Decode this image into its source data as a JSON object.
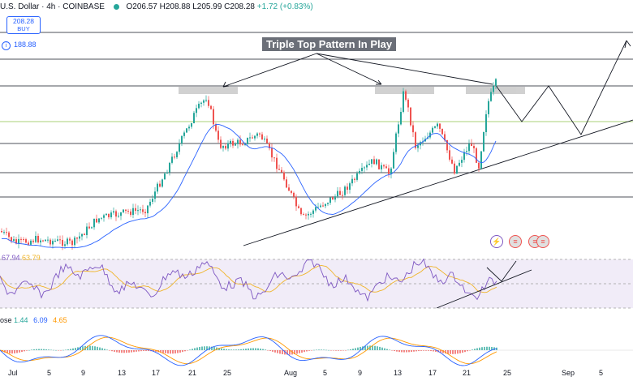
{
  "header": {
    "symbol": "U.S. Dollar · 4h · COINBASE",
    "open": "O206.57",
    "high": "H208.88",
    "low": "L205.99",
    "close": "C208.28",
    "change": "+1.72 (+0.83%)"
  },
  "buy_box": {
    "price": "208.28",
    "label": "BUY"
  },
  "sub_price": "188.88",
  "annotation": "Triple Top Pattern In Play",
  "rsi": {
    "label_a": "67.94",
    "label_b": "63.79"
  },
  "macd": {
    "label": "ose",
    "hist": "1.44",
    "macd": "6.09",
    "signal": "4.65"
  },
  "colors": {
    "up": "#26a69a",
    "down": "#ef5350",
    "ma": "#2962ff",
    "rsi": "#7e57c2",
    "rsi_ma": "#f0b429",
    "macd": "#2962ff",
    "signal": "#ff9800"
  },
  "icons": [
    "lightning-icon",
    "flag-icon",
    "flag-icon",
    "flag-icon"
  ],
  "chart_data": {
    "type": "candlestick",
    "x_ticks": [
      "Jul",
      "5",
      "9",
      "13",
      "17",
      "21",
      "25",
      "Aug",
      "5",
      "9",
      "13",
      "17",
      "21",
      "25",
      "Sep",
      "5"
    ],
    "key_levels_approx": [
      210,
      200,
      190,
      182,
      170
    ],
    "rsi_levels": [
      70,
      30
    ],
    "close_path_approx": [
      {
        "t": "Jul",
        "v": 150
      },
      {
        "t": "5",
        "v": 143
      },
      {
        "t": "9",
        "v": 147
      },
      {
        "t": "13",
        "v": 160
      },
      {
        "t": "17",
        "v": 168
      },
      {
        "t": "21",
        "v": 190
      },
      {
        "t": "23",
        "v": 204
      },
      {
        "t": "25",
        "v": 184
      },
      {
        "t": "29",
        "v": 182
      },
      {
        "t": "Aug",
        "v": 172
      },
      {
        "t": "5",
        "v": 158
      },
      {
        "t": "9",
        "v": 168
      },
      {
        "t": "13",
        "v": 188
      },
      {
        "t": "14",
        "v": 202
      },
      {
        "t": "17",
        "v": 186
      },
      {
        "t": "21",
        "v": 175
      },
      {
        "t": "23",
        "v": 190
      },
      {
        "t": "25",
        "v": 208
      }
    ]
  }
}
